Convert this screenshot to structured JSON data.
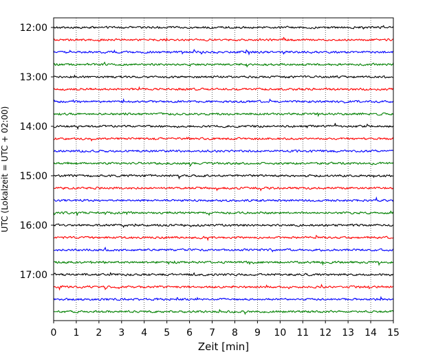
{
  "chart_data": {
    "type": "line",
    "title": "",
    "xlabel": "Zeit  [min]",
    "ylabel": "UTC (Lokalzeit = UTC + 02:00)",
    "xlim": [
      0,
      15
    ],
    "x_ticks": [
      "0",
      "1",
      "2",
      "3",
      "4",
      "5",
      "6",
      "7",
      "8",
      "9",
      "10",
      "11",
      "12",
      "13",
      "14",
      "15"
    ],
    "y_ticks": [
      "12:00",
      "13:00",
      "14:00",
      "15:00",
      "16:00",
      "17:00"
    ],
    "y_start": "12:00",
    "y_end": "17:45",
    "row_interval_minutes": 15,
    "trace_colors": [
      "#000000",
      "#ff0000",
      "#0000ff",
      "#008000"
    ],
    "grid": {
      "x": true,
      "y": false,
      "style": "dotted"
    },
    "series": [
      {
        "time": "12:00",
        "color": "#000000"
      },
      {
        "time": "12:15",
        "color": "#ff0000"
      },
      {
        "time": "12:30",
        "color": "#0000ff"
      },
      {
        "time": "12:45",
        "color": "#008000"
      },
      {
        "time": "13:00",
        "color": "#000000"
      },
      {
        "time": "13:15",
        "color": "#ff0000"
      },
      {
        "time": "13:30",
        "color": "#0000ff"
      },
      {
        "time": "13:45",
        "color": "#008000"
      },
      {
        "time": "14:00",
        "color": "#000000"
      },
      {
        "time": "14:15",
        "color": "#ff0000"
      },
      {
        "time": "14:30",
        "color": "#0000ff"
      },
      {
        "time": "14:45",
        "color": "#008000"
      },
      {
        "time": "15:00",
        "color": "#000000"
      },
      {
        "time": "15:15",
        "color": "#ff0000"
      },
      {
        "time": "15:30",
        "color": "#0000ff"
      },
      {
        "time": "15:45",
        "color": "#008000"
      },
      {
        "time": "16:00",
        "color": "#000000"
      },
      {
        "time": "16:15",
        "color": "#ff0000"
      },
      {
        "time": "16:30",
        "color": "#0000ff"
      },
      {
        "time": "16:45",
        "color": "#008000"
      },
      {
        "time": "17:00",
        "color": "#000000"
      },
      {
        "time": "17:15",
        "color": "#ff0000"
      },
      {
        "time": "17:30",
        "color": "#0000ff"
      },
      {
        "time": "17:45",
        "color": "#008000"
      }
    ]
  }
}
